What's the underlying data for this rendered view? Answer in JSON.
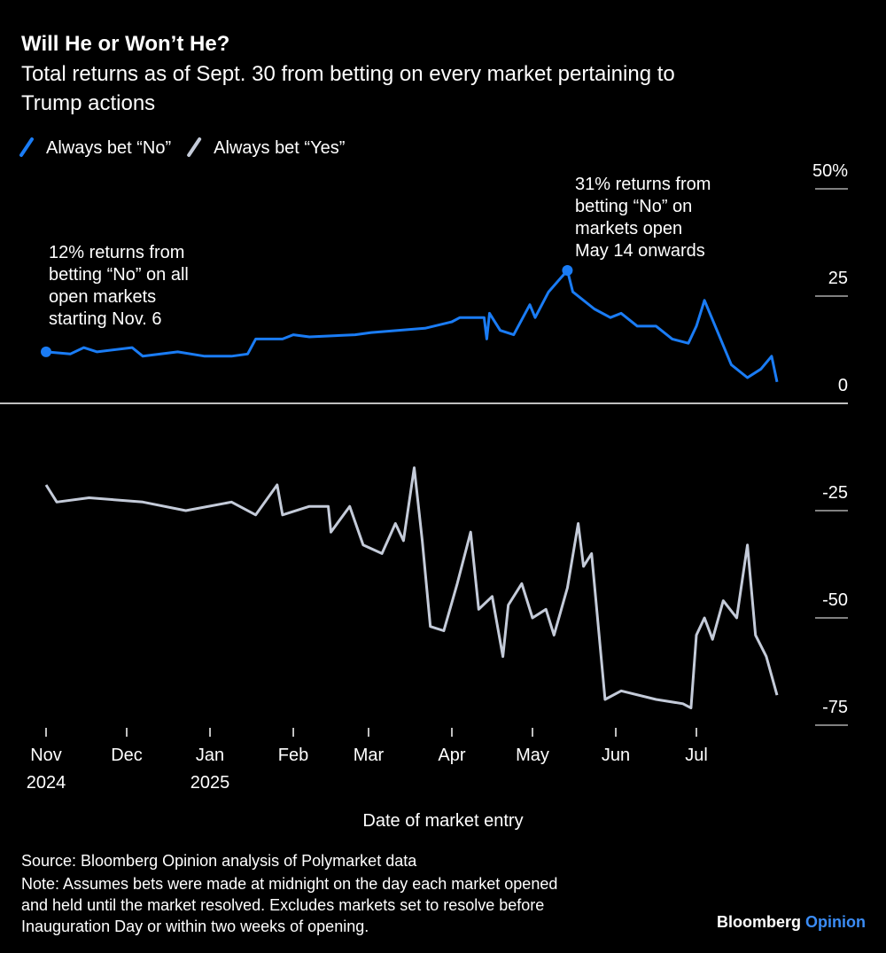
{
  "chart_data": {
    "type": "line",
    "title": "Will He or Won’t He?",
    "subtitle": [
      "Total returns as of Sept. 30 from betting on every market pertaining to",
      "Trump actions"
    ],
    "xlabel": "Date of market entry",
    "xlim": [
      "2024-11-01",
      "2025-07-31"
    ],
    "xticks": [
      {
        "value": "2024-11-01",
        "label": "Nov 2024"
      },
      {
        "value": "2024-12-01",
        "label": "Dec"
      },
      {
        "value": "2025-01-01",
        "label": "Jan 2025"
      },
      {
        "value": "2025-02-01",
        "label": "Feb"
      },
      {
        "value": "2025-03-01",
        "label": "Mar"
      },
      {
        "value": "2025-04-01",
        "label": "Apr"
      },
      {
        "value": "2025-05-01",
        "label": "May"
      },
      {
        "value": "2025-06-01",
        "label": "Jun"
      },
      {
        "value": "2025-07-01",
        "label": "Jul"
      }
    ],
    "ylim": [
      -75,
      50
    ],
    "yticks": [
      {
        "value": 50,
        "label": "50%"
      },
      25,
      0,
      -25,
      -50,
      -75
    ],
    "legend": "top-left",
    "series": [
      {
        "name": "Always bet “No”",
        "color": "#1a7cf5",
        "x": [
          "2024-11-01",
          "2024-11-10",
          "2024-11-15",
          "2024-11-20",
          "2024-12-03",
          "2024-12-07",
          "2024-12-20",
          "2024-12-30",
          "2025-01-09",
          "2025-01-15",
          "2025-01-18",
          "2025-01-28",
          "2025-02-01",
          "2025-02-07",
          "2025-02-24",
          "2025-03-02",
          "2025-03-22",
          "2025-04-01",
          "2025-04-04",
          "2025-04-13",
          "2025-04-14",
          "2025-04-15",
          "2025-04-19",
          "2025-04-24",
          "2025-04-30",
          "2025-05-02",
          "2025-05-07",
          "2025-05-14",
          "2025-05-16",
          "2025-05-24",
          "2025-05-30",
          "2025-06-03",
          "2025-06-09",
          "2025-06-16",
          "2025-06-22",
          "2025-06-28",
          "2025-07-01",
          "2025-07-04",
          "2025-07-06",
          "2025-07-10",
          "2025-07-14",
          "2025-07-20",
          "2025-07-25",
          "2025-07-29",
          "2025-07-31"
        ],
        "values": [
          12,
          11.5,
          13,
          12,
          13,
          11,
          12,
          11,
          11,
          11.5,
          15,
          15,
          16,
          15.5,
          16,
          16.5,
          17.5,
          19,
          20,
          20,
          15,
          21,
          17,
          16,
          23,
          20,
          26,
          31,
          26,
          22,
          20,
          21,
          18,
          18,
          15,
          14,
          18,
          24,
          21,
          15,
          9,
          6,
          8,
          11,
          5
        ]
      },
      {
        "name": "Always bet “Yes”",
        "color": "#c4cbd9",
        "x": [
          "2024-11-01",
          "2024-11-05",
          "2024-11-17",
          "2024-12-07",
          "2024-12-23",
          "2025-01-09",
          "2025-01-18",
          "2025-01-26",
          "2025-01-28",
          "2025-02-07",
          "2025-02-14",
          "2025-02-15",
          "2025-02-22",
          "2025-02-27",
          "2025-03-06",
          "2025-03-11",
          "2025-03-14",
          "2025-03-18",
          "2025-03-21",
          "2025-03-24",
          "2025-03-29",
          "2025-04-03",
          "2025-04-08",
          "2025-04-11",
          "2025-04-16",
          "2025-04-20",
          "2025-04-22",
          "2025-04-27",
          "2025-05-01",
          "2025-05-06",
          "2025-05-09",
          "2025-05-14",
          "2025-05-18",
          "2025-05-20",
          "2025-05-23",
          "2025-05-28",
          "2025-06-03",
          "2025-06-16",
          "2025-06-26",
          "2025-06-29",
          "2025-07-01",
          "2025-07-04",
          "2025-07-07",
          "2025-07-11",
          "2025-07-16",
          "2025-07-20",
          "2025-07-23",
          "2025-07-27",
          "2025-07-31"
        ],
        "values": [
          -19,
          -23,
          -22,
          -23,
          -25,
          -23,
          -26,
          -19,
          -26,
          -24,
          -24,
          -30,
          -24,
          -33,
          -35,
          -28,
          -32,
          -15,
          -32,
          -52,
          -53,
          -42,
          -30,
          -48,
          -45,
          -59,
          -47,
          -42,
          -50,
          -48,
          -54,
          -43,
          -28,
          -38,
          -35,
          -69,
          -67,
          -69,
          -70,
          -71,
          -54,
          -50,
          -55,
          -46,
          -50,
          -33,
          -54,
          -59,
          -68
        ]
      }
    ],
    "annotations": [
      [
        "12% returns from",
        "betting “No” on all",
        "open markets",
        "starting Nov. 6"
      ],
      [
        "31% returns from",
        "betting “No” on",
        "markets open",
        "May 14 onwards"
      ]
    ],
    "source": "Source: Bloomberg Opinion analysis of Polymarket data",
    "note": [
      "Note: Assumes bets were made at midnight on the day each market opened",
      "and held until the market resolved. Excludes markets set to resolve before",
      "Inauguration Day or within two weeks of opening."
    ],
    "brand": [
      "Bloomberg",
      "Opinion"
    ]
  }
}
